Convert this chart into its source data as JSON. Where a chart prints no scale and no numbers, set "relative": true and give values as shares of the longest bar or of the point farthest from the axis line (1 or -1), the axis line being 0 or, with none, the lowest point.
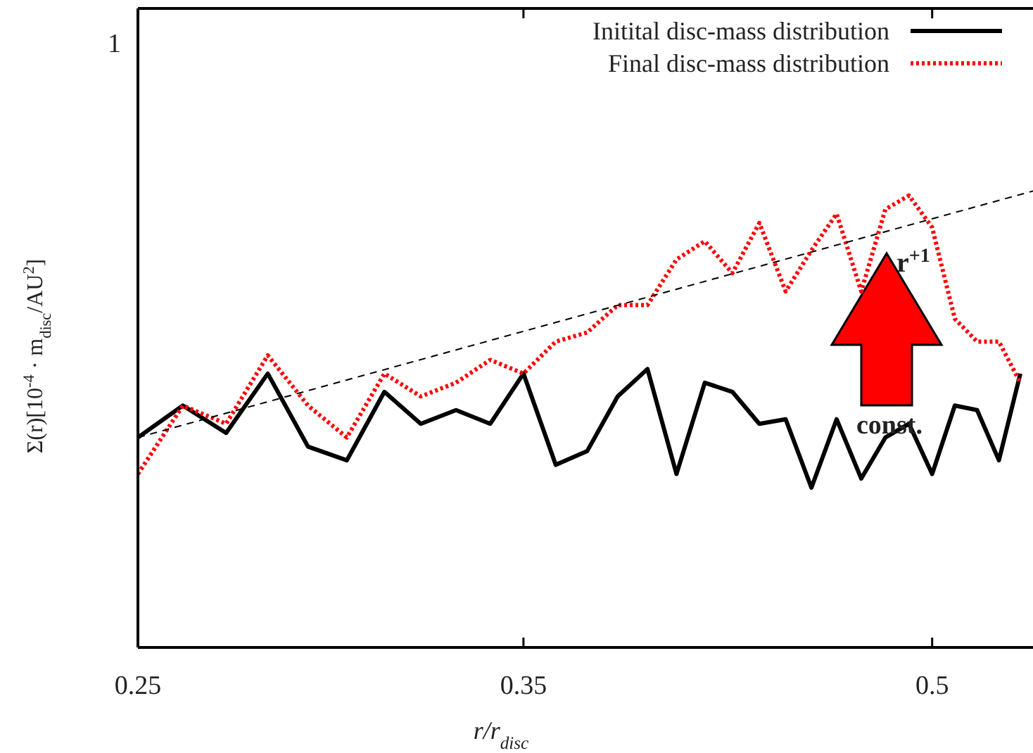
{
  "chart_data": {
    "type": "line",
    "xlabel": "r/r$_{disc}$",
    "ylabel": "Σ(r)[10$^{-4}$ · m$_{disc}$/AU$^{2}$]",
    "x": [
      0.25,
      0.26,
      0.27,
      0.28,
      0.29,
      0.3,
      0.31,
      0.32,
      0.33,
      0.34,
      0.35,
      0.36,
      0.37,
      0.38,
      0.39,
      0.4,
      0.41,
      0.42,
      0.43,
      0.44,
      0.45,
      0.46,
      0.47,
      0.48,
      0.49,
      0.5,
      0.51,
      0.52,
      0.53,
      0.54
    ],
    "series": [
      {
        "name": "Initital disc-mass distribution",
        "color": "#000000",
        "line_style": "solid",
        "values": [
          0.46,
          0.53,
          0.47,
          0.6,
          0.44,
          0.41,
          0.56,
          0.49,
          0.52,
          0.49,
          0.6,
          0.4,
          0.43,
          0.55,
          0.61,
          0.38,
          0.58,
          0.56,
          0.49,
          0.5,
          0.35,
          0.5,
          0.37,
          0.46,
          0.49,
          0.38,
          0.53,
          0.52,
          0.41,
          0.6
        ]
      },
      {
        "name": "Final disc-mass distribution",
        "color": "#ff0000",
        "line_style": "dotted",
        "values": [
          0.38,
          0.53,
          0.49,
          0.64,
          0.53,
          0.46,
          0.6,
          0.55,
          0.58,
          0.63,
          0.6,
          0.67,
          0.69,
          0.75,
          0.75,
          0.85,
          0.89,
          0.82,
          0.93,
          0.78,
          0.87,
          0.95,
          0.78,
          0.96,
          0.99,
          0.92,
          0.72,
          0.67,
          0.67,
          0.58
        ]
      },
      {
        "type": "line",
        "color": "#000000",
        "line_style": "dashed",
        "x": [
          0.25,
          0.546
        ],
        "values": [
          0.46,
          1
        ]
      }
    ],
    "xlim": [
      0.25,
      0.546
    ],
    "relative": true,
    "log": "x",
    "xticks": [
      0.25,
      0.35,
      0.5
    ],
    "legend": "top right",
    "marker": "none",
    "annotations": [
      "r$^{+1}$",
      "const.",
      "1"
    ]
  }
}
